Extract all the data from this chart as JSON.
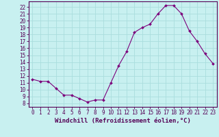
{
  "x": [
    0,
    1,
    2,
    3,
    4,
    5,
    6,
    7,
    8,
    9,
    10,
    11,
    12,
    13,
    14,
    15,
    16,
    17,
    18,
    19,
    20,
    21,
    22,
    23
  ],
  "y": [
    11.5,
    11.2,
    11.2,
    10.2,
    9.2,
    9.2,
    8.7,
    8.2,
    8.5,
    8.5,
    11.0,
    13.5,
    15.5,
    18.3,
    19.0,
    19.5,
    21.0,
    22.2,
    22.2,
    21.0,
    18.5,
    17.0,
    15.2,
    13.8
  ],
  "line_color": "#7b007b",
  "marker_color": "#7b007b",
  "bg_color": "#c8f0f0",
  "grid_color": "#aadddd",
  "xlabel": "Windchill (Refroidissement éolien,°C)",
  "ylabel_ticks": [
    8,
    9,
    10,
    11,
    12,
    13,
    14,
    15,
    16,
    17,
    18,
    19,
    20,
    21,
    22
  ],
  "xlim": [
    -0.5,
    23.5
  ],
  "ylim": [
    7.5,
    22.8
  ],
  "tick_fontsize": 5.5,
  "xlabel_fontsize": 6.5
}
